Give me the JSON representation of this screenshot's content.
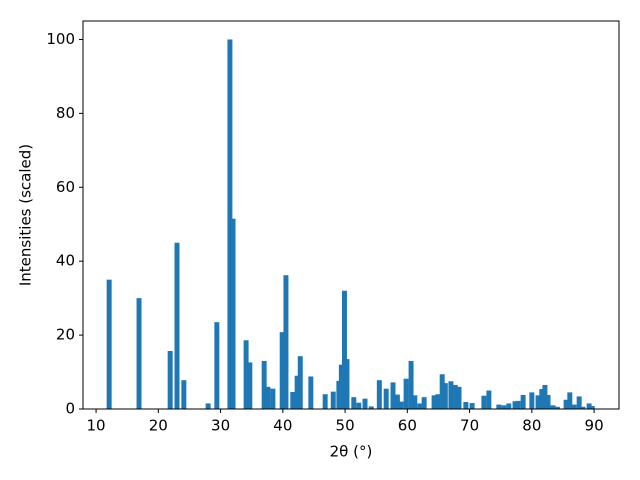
{
  "chart_data": {
    "type": "bar",
    "xlabel": "2θ (°)",
    "ylabel": "Intensities (scaled)",
    "color": "#1f77b4",
    "bar_width": 0.8,
    "x": [
      12.1,
      16.9,
      21.9,
      23.0,
      24.1,
      28.0,
      29.4,
      31.5,
      32.0,
      34.1,
      34.7,
      37.0,
      37.6,
      38.4,
      39.9,
      40.5,
      41.6,
      42.3,
      42.8,
      44.5,
      46.8,
      48.1,
      49.0,
      49.4,
      49.9,
      50.3,
      51.4,
      52.2,
      53.2,
      54.2,
      55.5,
      56.6,
      57.7,
      58.4,
      59.0,
      59.8,
      60.6,
      61.2,
      62.0,
      62.7,
      64.3,
      64.9,
      65.6,
      66.1,
      67.0,
      67.7,
      68.3,
      69.4,
      70.4,
      72.3,
      73.1,
      74.7,
      75.5,
      76.3,
      77.3,
      77.8,
      78.6,
      80.0,
      81.0,
      81.6,
      82.1,
      82.6,
      83.4,
      84.1,
      85.5,
      86.1,
      86.8,
      87.6,
      88.2,
      89.2,
      89.7
    ],
    "values": [
      35,
      30,
      15.7,
      45,
      7.8,
      1.5,
      23.5,
      100,
      51.5,
      18.6,
      12.6,
      13,
      6,
      5.5,
      20.8,
      36.2,
      4.6,
      9,
      14.3,
      8.8,
      4,
      4.7,
      7.6,
      12,
      32,
      13.5,
      3.2,
      1.7,
      2.8,
      0.7,
      7.8,
      5.5,
      7.2,
      3.9,
      2.0,
      8.2,
      13,
      3.7,
      1.5,
      3.2,
      3.7,
      4.0,
      9.4,
      7.0,
      7.5,
      6.5,
      6,
      1.9,
      1.6,
      3.6,
      5.0,
      1.2,
      1.0,
      1.5,
      2.1,
      2.2,
      3.8,
      4.5,
      3.7,
      5.4,
      6.5,
      3.8,
      1.0,
      0.6,
      2.5,
      4.5,
      1.2,
      3.4,
      0.6,
      1.5,
      0.8
    ],
    "xlim": [
      7.9,
      94.0
    ],
    "ylim": [
      0,
      105
    ],
    "xticks": [
      10,
      20,
      30,
      40,
      50,
      60,
      70,
      80,
      90
    ],
    "yticks": [
      0,
      20,
      40,
      60,
      80,
      100
    ]
  }
}
